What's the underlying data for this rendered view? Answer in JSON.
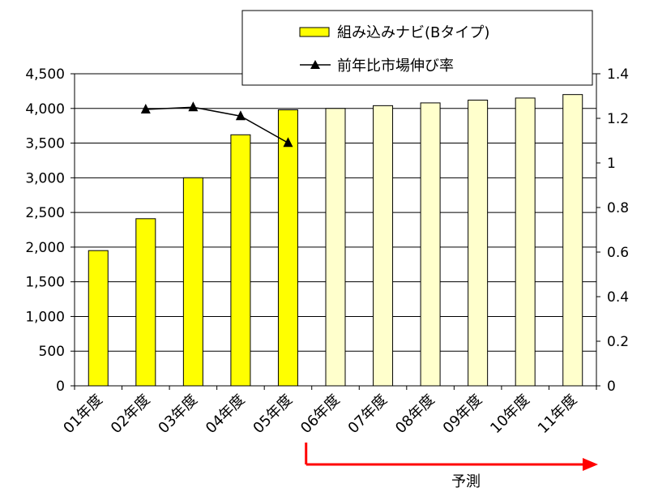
{
  "chart_data": {
    "type": "bar",
    "categories": [
      "01年度",
      "02年度",
      "03年度",
      "04年度",
      "05年度",
      "06年度",
      "07年度",
      "08年度",
      "09年度",
      "10年度",
      "11年度"
    ],
    "series": [
      {
        "name": "組み込みナビ(Bタイプ)",
        "type": "bar",
        "axis": "left",
        "values": [
          1950,
          2410,
          3000,
          3620,
          3980,
          4000,
          4040,
          4080,
          4120,
          4150,
          4200
        ],
        "color": "#ffff00",
        "forecast_color": "#ffffcc"
      },
      {
        "name": "前年比市場伸び率",
        "type": "line",
        "axis": "right",
        "values": [
          null,
          1.24,
          1.25,
          1.21,
          1.09,
          null,
          null,
          null,
          null,
          null,
          null
        ],
        "color": "#000000",
        "marker": "triangle"
      }
    ],
    "forecast_start_index": 5,
    "forecast_label": "予測",
    "forecast_arrow_color": "#ff0000",
    "left_axis": {
      "ylim": [
        0,
        4500
      ],
      "ticks": [
        0,
        500,
        1000,
        1500,
        2000,
        2500,
        3000,
        3500,
        4000,
        4500
      ],
      "tick_labels": [
        "0",
        "500",
        "1,000",
        "1,500",
        "2,000",
        "2,500",
        "3,000",
        "3,500",
        "4,000",
        "4,500"
      ]
    },
    "right_axis": {
      "ylim": [
        0,
        1.4
      ],
      "ticks": [
        0,
        0.2,
        0.4,
        0.6,
        0.8,
        1.0,
        1.2,
        1.4
      ],
      "tick_labels": [
        "0",
        "0.2",
        "0.4",
        "0.6",
        "0.8",
        "1",
        "1.2",
        "1.4"
      ]
    },
    "grid": "horizontal",
    "legend": "top-center",
    "title": "",
    "xlabel": "",
    "ylabel": ""
  }
}
